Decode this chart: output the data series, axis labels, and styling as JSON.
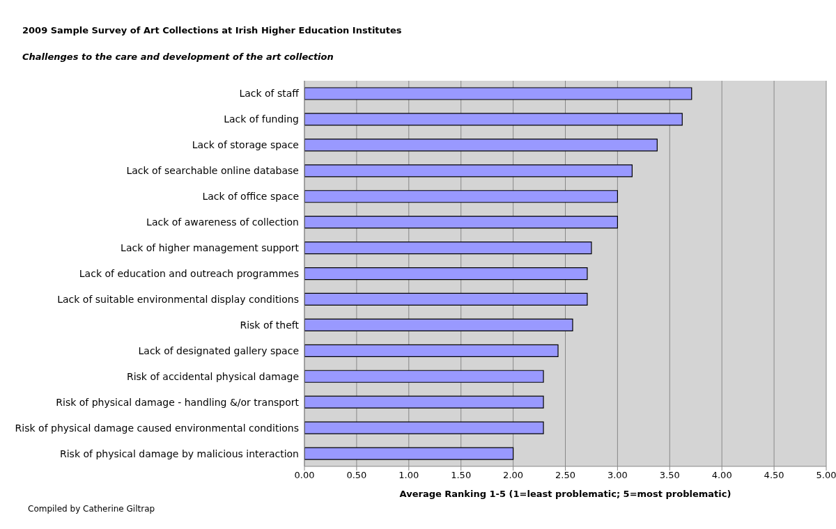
{
  "chart_data": {
    "type": "bar",
    "orientation": "horizontal",
    "title": "2009 Sample Survey of Art Collections at Irish Higher Education Institutes",
    "subtitle": "Challenges to the care and development of the art collection",
    "xlabel": "Average Ranking 1-5 (1=least problematic; 5=most problematic)",
    "categories": [
      "Lack of staff",
      "Lack of funding",
      "Lack of storage space",
      "Lack of searchable online database",
      "Lack of office space",
      "Lack of awareness of collection",
      "Lack of higher management support",
      "Lack of education and outreach programmes",
      "Lack of suitable environmental display conditions",
      "Risk of theft",
      "Lack of designated gallery space",
      "Risk of accidental physical damage",
      "Risk of physical damage - handling &/or transport",
      "Risk of physical damage caused environmental conditions",
      "Risk of physical damage by malicious interaction"
    ],
    "values": [
      3.71,
      3.62,
      3.38,
      3.14,
      3.0,
      3.0,
      2.75,
      2.71,
      2.71,
      2.57,
      2.43,
      2.29,
      2.29,
      2.29,
      2.0
    ],
    "color": "#9999ff",
    "xlim": [
      0,
      5
    ],
    "xticks": [
      {
        "value": 0,
        "label": "0.00"
      },
      {
        "value": 0.5,
        "label": "0.50"
      },
      {
        "value": 1,
        "label": "1.00"
      },
      {
        "value": 1.5,
        "label": "1.50"
      },
      {
        "value": 2,
        "label": "2.00"
      },
      {
        "value": 2.5,
        "label": "2.50"
      },
      {
        "value": 3,
        "label": "3.00"
      },
      {
        "value": 3.5,
        "label": "3.50"
      },
      {
        "value": 4,
        "label": "4.00"
      },
      {
        "value": 4.5,
        "label": "4.50"
      },
      {
        "value": 5,
        "label": "5.00"
      }
    ],
    "grid": "x",
    "annotations": [
      "Compiled by Catherine Giltrap"
    ]
  }
}
